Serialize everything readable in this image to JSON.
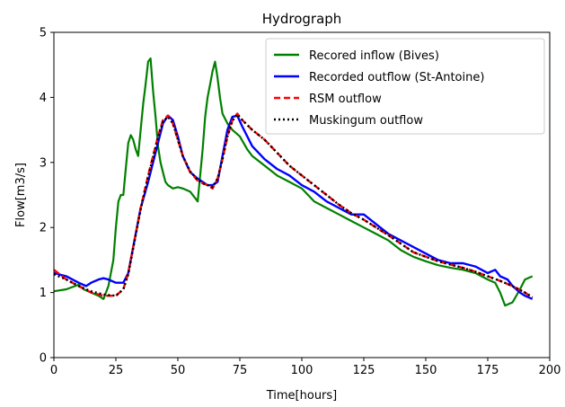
{
  "chart_data": {
    "type": "line",
    "title": "Hydrograph",
    "xlabel": "Time[hours]",
    "ylabel": "Flow[m3/s]",
    "xlim": [
      0,
      200
    ],
    "ylim": [
      0,
      5
    ],
    "xticks": [
      0,
      25,
      50,
      75,
      100,
      125,
      150,
      175,
      200
    ],
    "yticks": [
      0,
      1,
      2,
      3,
      4,
      5
    ],
    "grid": false,
    "legend_position": "top-right",
    "series": [
      {
        "name": "Recored inflow (Bives)",
        "color": "#008000",
        "style": "solid",
        "x": [
          0,
          5,
          10,
          12,
          15,
          18,
          20,
          22,
          24,
          25,
          26,
          27,
          28,
          29,
          30,
          31,
          32,
          33,
          34,
          35,
          36,
          37,
          38,
          39,
          40,
          41,
          42,
          43,
          44,
          45,
          46,
          48,
          50,
          52,
          55,
          58,
          60,
          61,
          62,
          63,
          64,
          65,
          66,
          67,
          68,
          70,
          72,
          75,
          78,
          80,
          85,
          90,
          95,
          100,
          105,
          110,
          115,
          120,
          125,
          130,
          135,
          140,
          145,
          150,
          155,
          160,
          165,
          170,
          175,
          178,
          180,
          182,
          185,
          188,
          190,
          193
        ],
        "values": [
          1.02,
          1.05,
          1.12,
          1.05,
          1.0,
          0.95,
          0.9,
          1.1,
          1.5,
          2.0,
          2.4,
          2.5,
          2.5,
          2.9,
          3.3,
          3.42,
          3.35,
          3.2,
          3.1,
          3.5,
          3.9,
          4.2,
          4.55,
          4.6,
          4.1,
          3.7,
          3.25,
          3.0,
          2.85,
          2.7,
          2.65,
          2.6,
          2.62,
          2.6,
          2.55,
          2.4,
          3.2,
          3.7,
          4.0,
          4.2,
          4.4,
          4.55,
          4.3,
          4.0,
          3.75,
          3.6,
          3.5,
          3.4,
          3.2,
          3.1,
          2.95,
          2.8,
          2.7,
          2.6,
          2.4,
          2.3,
          2.2,
          2.1,
          2.0,
          1.9,
          1.8,
          1.65,
          1.55,
          1.48,
          1.42,
          1.38,
          1.35,
          1.3,
          1.2,
          1.15,
          1.0,
          0.8,
          0.85,
          1.05,
          1.2,
          1.25
        ]
      },
      {
        "name": "Recorded outflow (St-Antoine)",
        "color": "#0000ff",
        "style": "solid",
        "x": [
          0,
          5,
          10,
          13,
          15,
          18,
          20,
          22,
          25,
          28,
          30,
          32,
          35,
          38,
          40,
          42,
          44,
          46,
          48,
          50,
          52,
          55,
          58,
          60,
          62,
          64,
          66,
          68,
          70,
          72,
          74,
          76,
          80,
          85,
          90,
          95,
          100,
          105,
          110,
          115,
          120,
          125,
          130,
          135,
          140,
          145,
          150,
          155,
          160,
          165,
          170,
          175,
          178,
          180,
          183,
          185,
          188,
          190,
          193
        ],
        "values": [
          1.3,
          1.25,
          1.15,
          1.1,
          1.15,
          1.2,
          1.22,
          1.2,
          1.15,
          1.15,
          1.3,
          1.7,
          2.3,
          2.7,
          3.0,
          3.3,
          3.6,
          3.72,
          3.65,
          3.4,
          3.1,
          2.85,
          2.75,
          2.7,
          2.65,
          2.65,
          2.7,
          3.1,
          3.5,
          3.7,
          3.72,
          3.55,
          3.25,
          3.05,
          2.9,
          2.8,
          2.65,
          2.55,
          2.4,
          2.3,
          2.2,
          2.2,
          2.05,
          1.9,
          1.8,
          1.7,
          1.6,
          1.5,
          1.45,
          1.45,
          1.4,
          1.3,
          1.35,
          1.25,
          1.2,
          1.1,
          1.0,
          0.95,
          0.9
        ]
      },
      {
        "name": "RSM outflow",
        "color": "#ff0000",
        "style": "dashed",
        "x": [
          0,
          5,
          10,
          15,
          20,
          25,
          28,
          30,
          32,
          35,
          38,
          40,
          42,
          44,
          46,
          48,
          50,
          52,
          55,
          58,
          60,
          62,
          64,
          66,
          68,
          70,
          72,
          74,
          76,
          80,
          85,
          90,
          95,
          100,
          105,
          110,
          115,
          120,
          125,
          130,
          135,
          140,
          145,
          150,
          155,
          160,
          165,
          170,
          175,
          180,
          185,
          190,
          193
        ],
        "values": [
          1.35,
          1.2,
          1.1,
          1.0,
          0.95,
          0.95,
          1.05,
          1.3,
          1.7,
          2.3,
          2.8,
          3.1,
          3.4,
          3.65,
          3.72,
          3.6,
          3.35,
          3.1,
          2.85,
          2.72,
          2.68,
          2.65,
          2.6,
          2.75,
          3.05,
          3.4,
          3.65,
          3.75,
          3.65,
          3.5,
          3.35,
          3.15,
          2.95,
          2.8,
          2.65,
          2.5,
          2.35,
          2.22,
          2.12,
          2.0,
          1.88,
          1.75,
          1.62,
          1.55,
          1.48,
          1.43,
          1.38,
          1.32,
          1.25,
          1.18,
          1.1,
          1.0,
          0.92
        ]
      },
      {
        "name": "Muskingum outflow",
        "color": "#000000",
        "style": "dotted",
        "x": [
          0,
          5,
          10,
          15,
          20,
          25,
          28,
          30,
          32,
          35,
          38,
          40,
          42,
          44,
          46,
          48,
          50,
          52,
          55,
          58,
          60,
          62,
          64,
          66,
          68,
          70,
          72,
          74,
          76,
          80,
          85,
          90,
          95,
          100,
          105,
          110,
          115,
          120,
          125,
          130,
          135,
          140,
          145,
          150,
          155,
          160,
          165,
          170,
          175,
          180,
          185,
          190,
          193
        ],
        "values": [
          1.28,
          1.2,
          1.1,
          1.02,
          0.97,
          0.95,
          1.05,
          1.28,
          1.68,
          2.28,
          2.78,
          3.08,
          3.38,
          3.63,
          3.7,
          3.6,
          3.35,
          3.1,
          2.86,
          2.73,
          2.68,
          2.65,
          2.62,
          2.75,
          3.05,
          3.4,
          3.64,
          3.74,
          3.65,
          3.5,
          3.35,
          3.15,
          2.95,
          2.8,
          2.65,
          2.5,
          2.35,
          2.22,
          2.12,
          2.0,
          1.88,
          1.75,
          1.62,
          1.55,
          1.48,
          1.43,
          1.38,
          1.32,
          1.25,
          1.18,
          1.1,
          1.0,
          0.93
        ]
      }
    ]
  }
}
